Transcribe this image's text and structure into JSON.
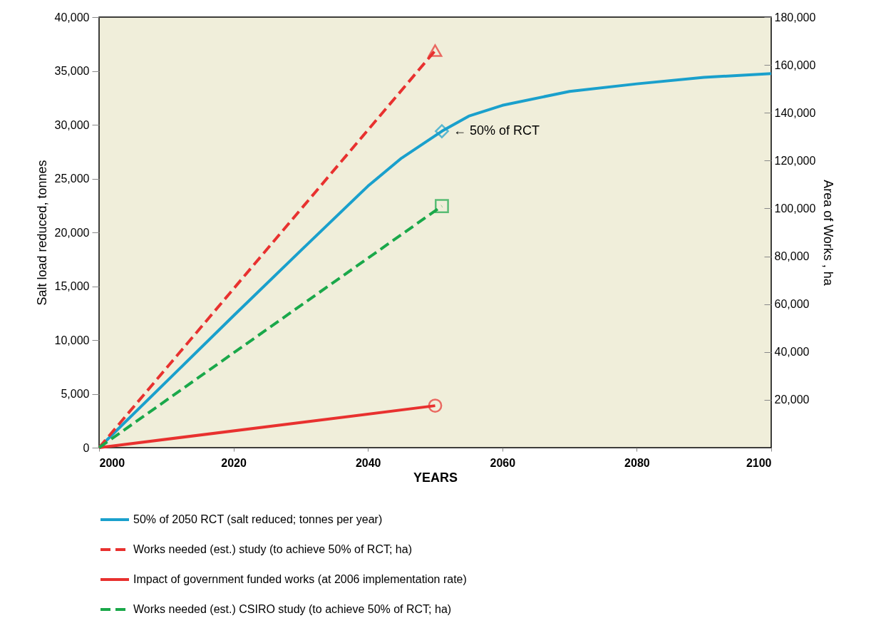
{
  "chart_data": {
    "type": "line",
    "xlabel": "YEARS",
    "ylabel": "Salt load reduced, tonnes",
    "y2label": "Area of Works , ha",
    "xlim": [
      2000,
      2100
    ],
    "xticks": [
      2000,
      2020,
      2040,
      2060,
      2080,
      2100
    ],
    "ylim": [
      0,
      40000
    ],
    "yticks": [
      0,
      {
        "value": 5000,
        "label": "5,000"
      },
      {
        "value": 10000,
        "label": "10,000"
      },
      {
        "value": 15000,
        "label": "15,000"
      },
      {
        "value": 20000,
        "label": "20,000"
      },
      {
        "value": 25000,
        "label": "25,000"
      },
      {
        "value": 30000,
        "label": "30,000"
      },
      {
        "value": 35000,
        "label": "35,000"
      },
      {
        "value": 40000,
        "label": "40,000"
      }
    ],
    "y2lim": [
      0,
      180000
    ],
    "y2ticks": [
      {
        "value": 20000,
        "label": "20,000"
      },
      {
        "value": 40000,
        "label": "40,000"
      },
      {
        "value": 60000,
        "label": "60,000"
      },
      {
        "value": 80000,
        "label": "80,000"
      },
      {
        "value": 100000,
        "label": "100,000"
      },
      {
        "value": 120000,
        "label": "120,000"
      },
      {
        "value": 140000,
        "label": "140,000"
      },
      {
        "value": 160000,
        "label": "160,000"
      },
      {
        "value": 180000,
        "label": "180,000"
      }
    ],
    "grid": false,
    "legend": "bottom",
    "series": [
      {
        "name": "50% of 2050 RCT (salt reduced; tonnes per year)",
        "color": "#1aa0cc",
        "line_style": "solid",
        "axis": "y",
        "x": [
          2000,
          2020,
          2030,
          2040,
          2045,
          2051,
          2055,
          2060,
          2070,
          2080,
          2090,
          2100
        ],
        "values": [
          0,
          12250,
          18300,
          24300,
          26900,
          29400,
          30800,
          31800,
          33100,
          33800,
          34400,
          34750
        ]
      },
      {
        "name": "Works needed (est.) study (to achieve 50% of RCT; ha)",
        "color": "#e8312f",
        "line_style": "dashed",
        "axis": "y2",
        "x": [
          2000,
          2050
        ],
        "values": [
          0,
          166000
        ]
      },
      {
        "name": "Impact of government funded works (at 2006 implementation rate)",
        "color": "#e8312f",
        "line_style": "solid",
        "axis": "y",
        "x": [
          2000,
          2050
        ],
        "values": [
          0,
          3900
        ]
      },
      {
        "name": "Works needed (est.) CSIRO study (to achieve 50% of RCT; ha)",
        "color": "#1aa84a",
        "line_style": "dashed",
        "axis": "y2",
        "x": [
          2000,
          2051
        ],
        "values": [
          0,
          101000
        ]
      },
      {
        "type": "scatter",
        "color": "#1aa0cc",
        "marker": "diamond",
        "axis": "y",
        "x": [
          2051
        ],
        "values": [
          29400
        ]
      },
      {
        "type": "scatter",
        "color": "#e8312f",
        "marker": "triangle",
        "axis": "y2",
        "x": [
          2050
        ],
        "values": [
          166000
        ]
      },
      {
        "type": "scatter",
        "color": "#e8312f",
        "marker": "circle",
        "axis": "y",
        "x": [
          2050
        ],
        "values": [
          3900
        ]
      },
      {
        "type": "scatter",
        "color": "#1aa84a",
        "marker": "square",
        "axis": "y2",
        "x": [
          2051
        ],
        "values": [
          101000
        ]
      }
    ],
    "annotations": [
      {
        "text": "← 50% of RCT",
        "x": 2051,
        "y": 29400
      }
    ]
  }
}
